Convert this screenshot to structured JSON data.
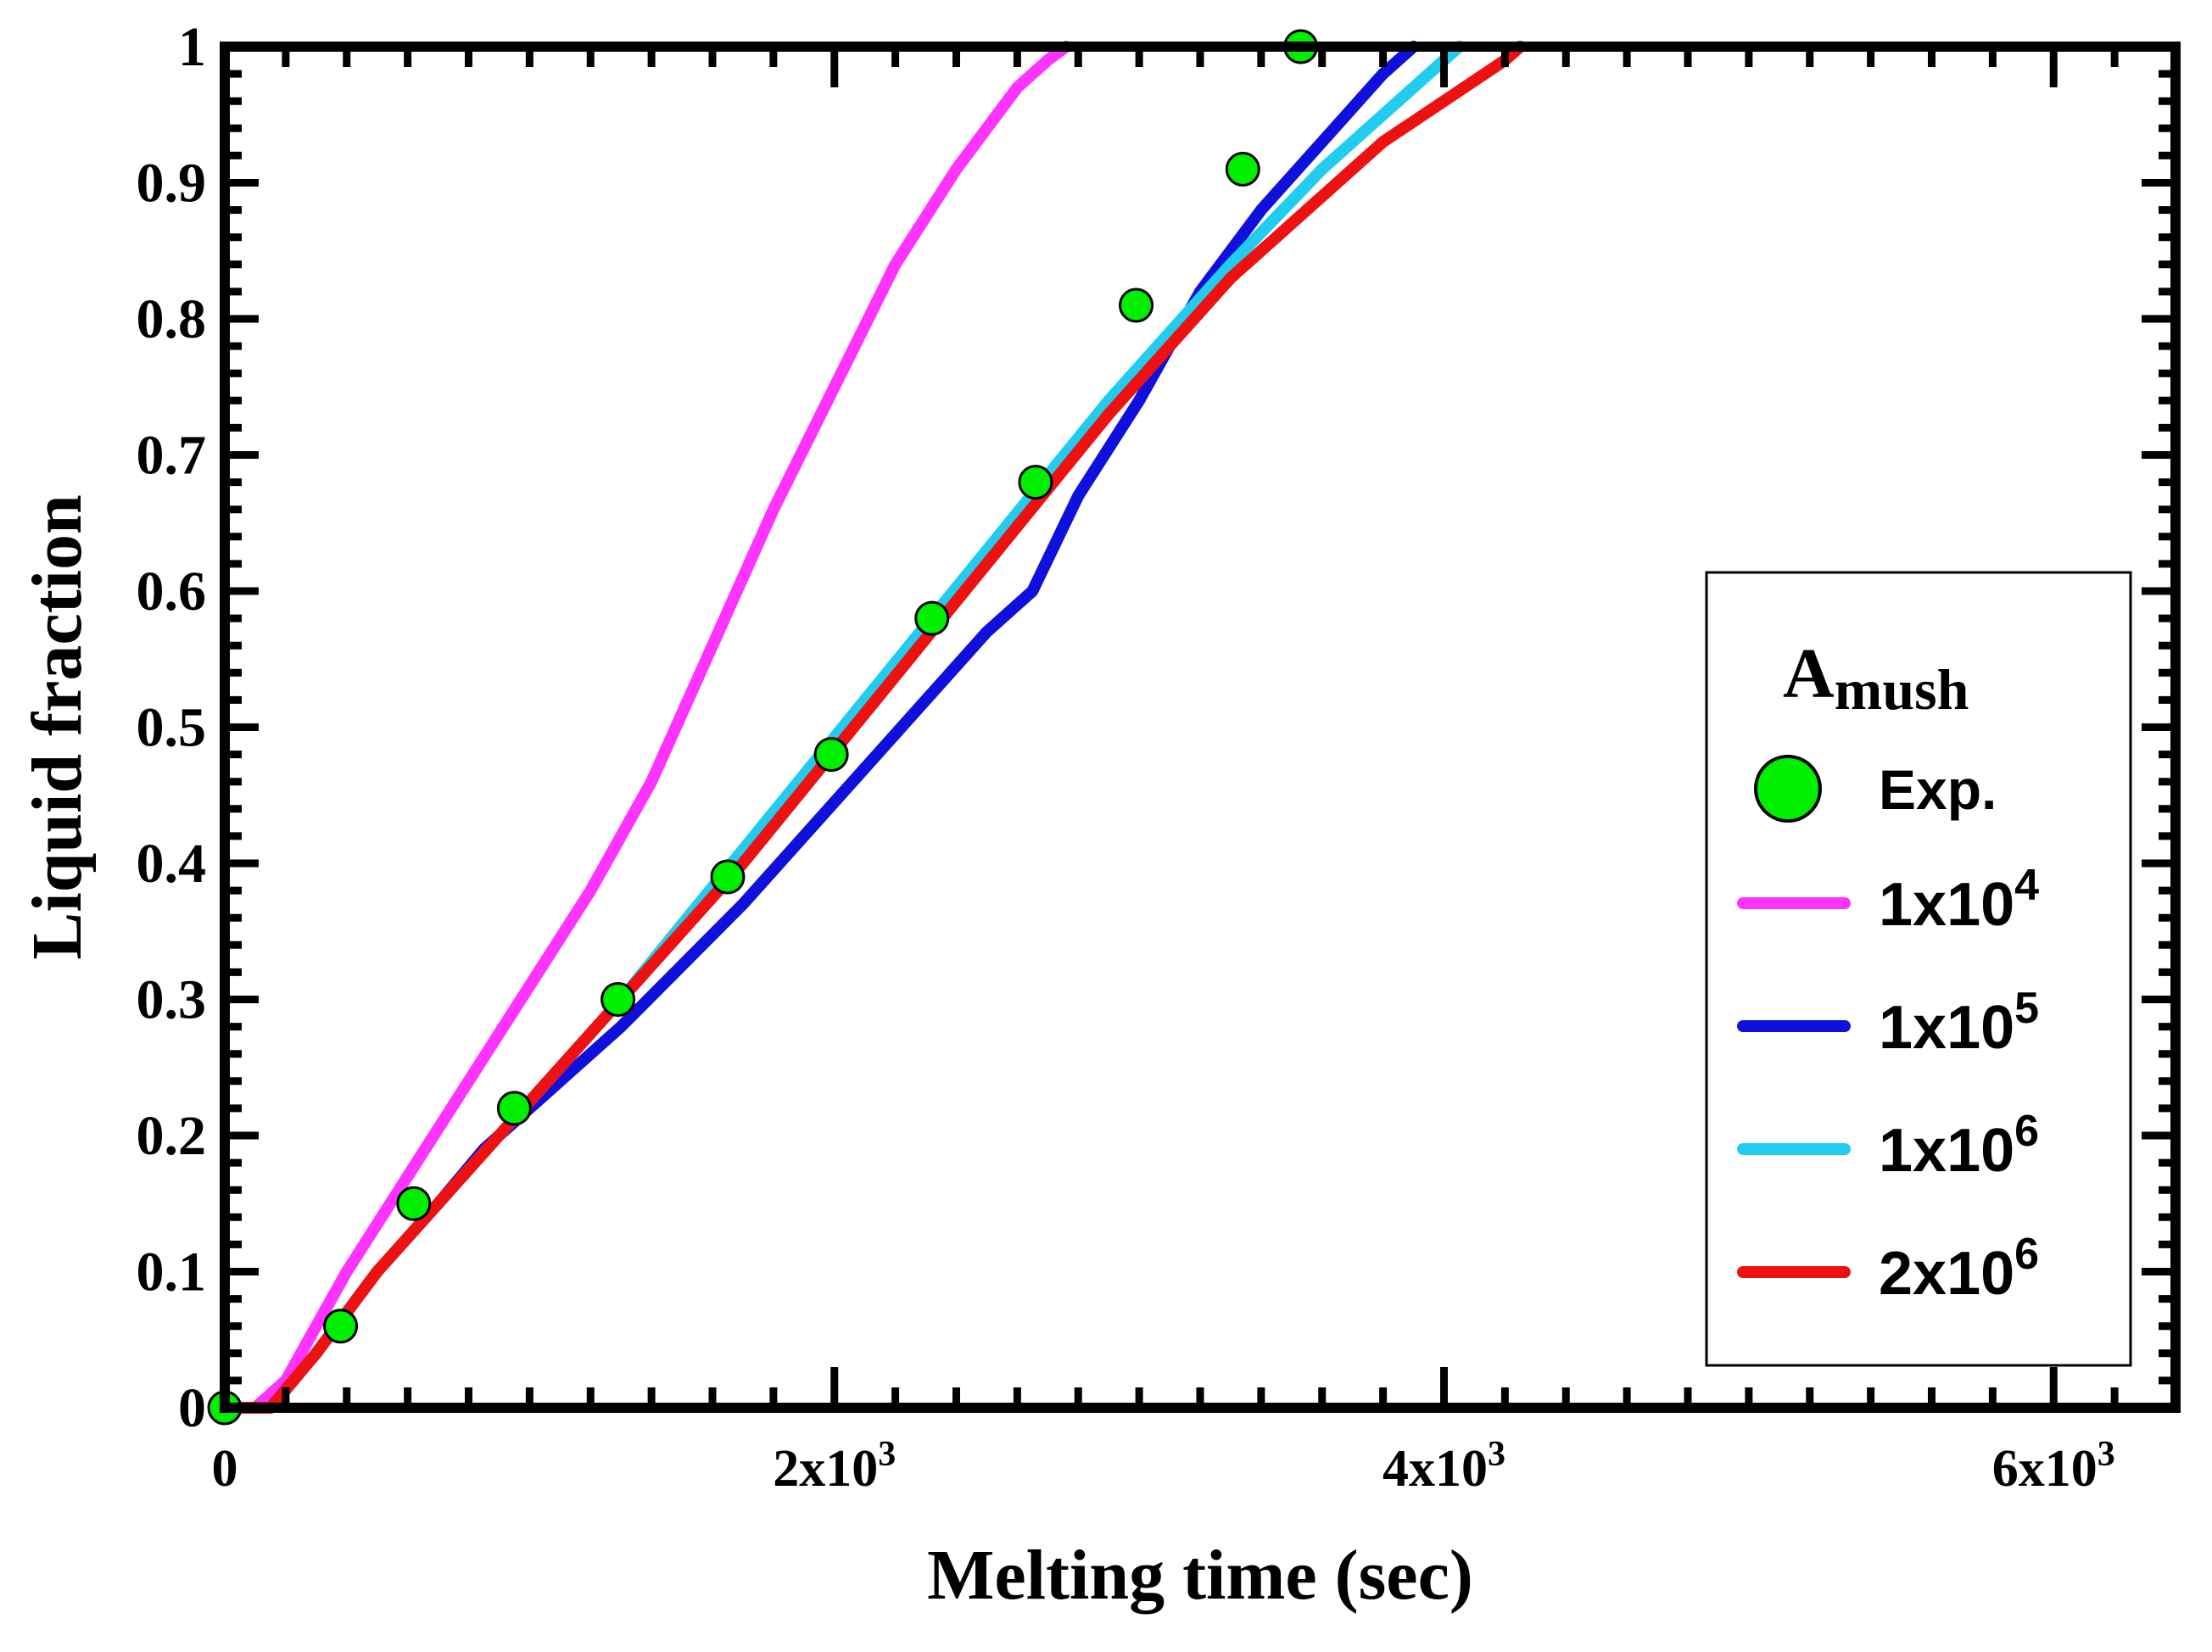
{
  "chart_data": {
    "type": "line",
    "xlabel": "Melting time (sec)",
    "ylabel": "Liquid fraction",
    "xlim": [
      0,
      6400
    ],
    "ylim": [
      0,
      1
    ],
    "grid": false,
    "x_ticks": [
      {
        "value": 0,
        "base": "0",
        "exp": ""
      },
      {
        "value": 2000,
        "base": "2x10",
        "exp": "3"
      },
      {
        "value": 4000,
        "base": "4x10",
        "exp": "3"
      },
      {
        "value": 6000,
        "base": "6x10",
        "exp": "3"
      }
    ],
    "y_ticks": [
      {
        "value": 0,
        "label": "0"
      },
      {
        "value": 0.1,
        "label": "0.1"
      },
      {
        "value": 0.2,
        "label": "0.2"
      },
      {
        "value": 0.3,
        "label": "0.3"
      },
      {
        "value": 0.4,
        "label": "0.4"
      },
      {
        "value": 0.5,
        "label": "0.5"
      },
      {
        "value": 0.6,
        "label": "0.6"
      },
      {
        "value": 0.7,
        "label": "0.7"
      },
      {
        "value": 0.8,
        "label": "0.8"
      },
      {
        "value": 0.9,
        "label": "0.9"
      },
      {
        "value": 1,
        "label": "1"
      }
    ],
    "legend": {
      "position": "right",
      "title_main": "A",
      "title_sub": "mush"
    },
    "experimental": {
      "name": "Exp.",
      "color": "#00ee00",
      "points": [
        [
          0,
          0
        ],
        [
          380,
          0.06
        ],
        [
          620,
          0.15
        ],
        [
          950,
          0.22
        ],
        [
          1290,
          0.3
        ],
        [
          1650,
          0.39
        ],
        [
          1990,
          0.48
        ],
        [
          2320,
          0.58
        ],
        [
          2660,
          0.68
        ],
        [
          2990,
          0.81
        ],
        [
          3340,
          0.91
        ],
        [
          3530,
          1.0
        ]
      ]
    },
    "series": [
      {
        "name_base": "1x10",
        "name_exp": "4",
        "color": "#ff33ff",
        "points": [
          [
            0,
            0
          ],
          [
            100,
            0
          ],
          [
            200,
            0.02
          ],
          [
            300,
            0.06
          ],
          [
            400,
            0.1
          ],
          [
            600,
            0.17
          ],
          [
            800,
            0.24
          ],
          [
            1000,
            0.31
          ],
          [
            1200,
            0.38
          ],
          [
            1400,
            0.46
          ],
          [
            1600,
            0.56
          ],
          [
            1800,
            0.66
          ],
          [
            2000,
            0.75
          ],
          [
            2200,
            0.84
          ],
          [
            2400,
            0.91
          ],
          [
            2600,
            0.97
          ],
          [
            2700,
            0.99
          ],
          [
            2760,
            1.0
          ]
        ]
      },
      {
        "name_base": "1x10",
        "name_exp": "5",
        "color": "#1010dd",
        "points": [
          [
            0,
            0
          ],
          [
            150,
            0
          ],
          [
            300,
            0.04
          ],
          [
            500,
            0.1
          ],
          [
            700,
            0.15
          ],
          [
            850,
            0.19
          ],
          [
            1000,
            0.22
          ],
          [
            1300,
            0.28
          ],
          [
            1700,
            0.37
          ],
          [
            2100,
            0.47
          ],
          [
            2500,
            0.57
          ],
          [
            2650,
            0.6
          ],
          [
            2800,
            0.67
          ],
          [
            3000,
            0.74
          ],
          [
            3200,
            0.82
          ],
          [
            3400,
            0.88
          ],
          [
            3600,
            0.93
          ],
          [
            3800,
            0.98
          ],
          [
            3900,
            1.0
          ]
        ]
      },
      {
        "name_base": "1x10",
        "name_exp": "6",
        "color": "#22ccee",
        "points": [
          [
            0,
            0
          ],
          [
            150,
            0
          ],
          [
            300,
            0.04
          ],
          [
            500,
            0.1
          ],
          [
            700,
            0.15
          ],
          [
            900,
            0.2
          ],
          [
            1100,
            0.25
          ],
          [
            1300,
            0.3
          ],
          [
            1700,
            0.41
          ],
          [
            2100,
            0.52
          ],
          [
            2500,
            0.63
          ],
          [
            2900,
            0.74
          ],
          [
            3300,
            0.84
          ],
          [
            3600,
            0.91
          ],
          [
            3800,
            0.95
          ],
          [
            4000,
            0.99
          ],
          [
            4050,
            1.0
          ]
        ]
      },
      {
        "name_base": "2x10",
        "name_exp": "6",
        "color": "#ee1111",
        "points": [
          [
            0,
            0
          ],
          [
            150,
            0
          ],
          [
            300,
            0.04
          ],
          [
            500,
            0.1
          ],
          [
            700,
            0.15
          ],
          [
            900,
            0.2
          ],
          [
            1100,
            0.25
          ],
          [
            1300,
            0.3
          ],
          [
            1700,
            0.4
          ],
          [
            2100,
            0.51
          ],
          [
            2500,
            0.62
          ],
          [
            2900,
            0.73
          ],
          [
            3300,
            0.83
          ],
          [
            3600,
            0.89
          ],
          [
            3800,
            0.93
          ],
          [
            4000,
            0.96
          ],
          [
            4200,
            0.99
          ],
          [
            4250,
            1.0
          ]
        ]
      }
    ]
  }
}
